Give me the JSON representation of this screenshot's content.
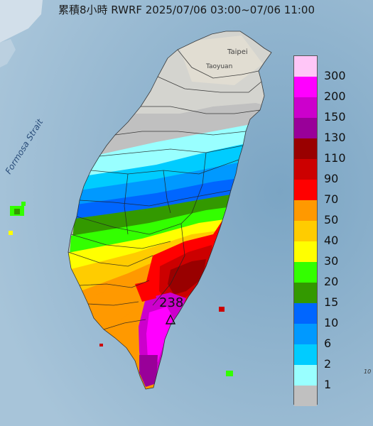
{
  "title": "累積8小時 RWRF 2025/07/06 03:00~07/06 11:00",
  "map": {
    "sea_label": "Formosa Strait",
    "city_labels": [
      "Taipei",
      "Taoyuan"
    ],
    "max_marker_value": "238",
    "edge_label": "10"
  },
  "legend": [
    {
      "label": "300",
      "color": "#ffc6f7"
    },
    {
      "label": "200",
      "color": "#ff00ff"
    },
    {
      "label": "150",
      "color": "#cc00cc"
    },
    {
      "label": "130",
      "color": "#990099"
    },
    {
      "label": "110",
      "color": "#990000"
    },
    {
      "label": "90",
      "color": "#cc0000"
    },
    {
      "label": "70",
      "color": "#ff0000"
    },
    {
      "label": "50",
      "color": "#ff9900"
    },
    {
      "label": "40",
      "color": "#ffcc00"
    },
    {
      "label": "30",
      "color": "#ffff00"
    },
    {
      "label": "20",
      "color": "#33ff00"
    },
    {
      "label": "15",
      "color": "#339900"
    },
    {
      "label": "10",
      "color": "#0066ff"
    },
    {
      "label": "6",
      "color": "#0099ff"
    },
    {
      "label": "2",
      "color": "#00ccff"
    },
    {
      "label": "1",
      "color": "#99ffff"
    },
    {
      "label": "",
      "color": "#c0c0c0"
    }
  ]
}
